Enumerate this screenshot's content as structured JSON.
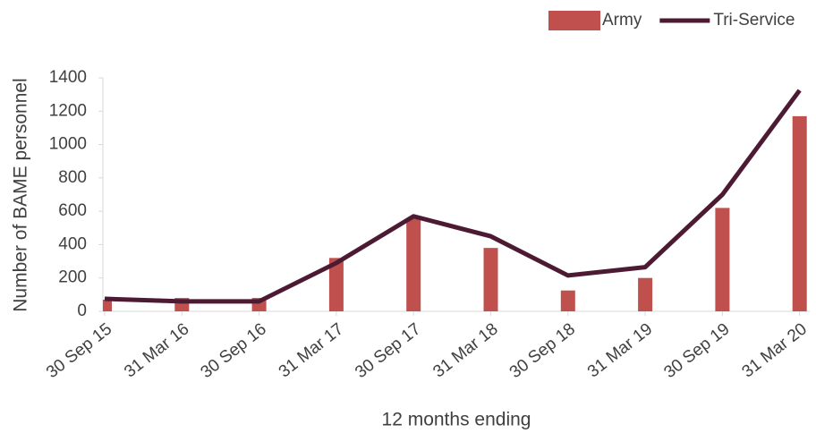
{
  "chart_data": {
    "type": "combo",
    "x_label": "12 months ending",
    "y_label": "Number of BAME personnel",
    "categories": [
      "30 Sep 15",
      "31 Mar 16",
      "30 Sep 16",
      "31 Mar 17",
      "30 Sep 17",
      "31 Mar 18",
      "30 Sep 18",
      "31 Mar 19",
      "30 Sep 19",
      "31 Mar 20"
    ],
    "series": [
      {
        "name": "Army",
        "type": "bar",
        "color": "#c0504d",
        "values": [
          70,
          80,
          80,
          320,
          560,
          380,
          125,
          200,
          620,
          1170
        ]
      },
      {
        "name": "Tri-Service",
        "type": "line",
        "color": "#4d1a33",
        "values": [
          75,
          60,
          60,
          290,
          570,
          450,
          215,
          265,
          700,
          1325
        ]
      }
    ],
    "ylim": [
      0,
      1400
    ],
    "yticks": [
      0,
      200,
      400,
      600,
      800,
      1000,
      1200,
      1400
    ],
    "legend": "top-right"
  }
}
